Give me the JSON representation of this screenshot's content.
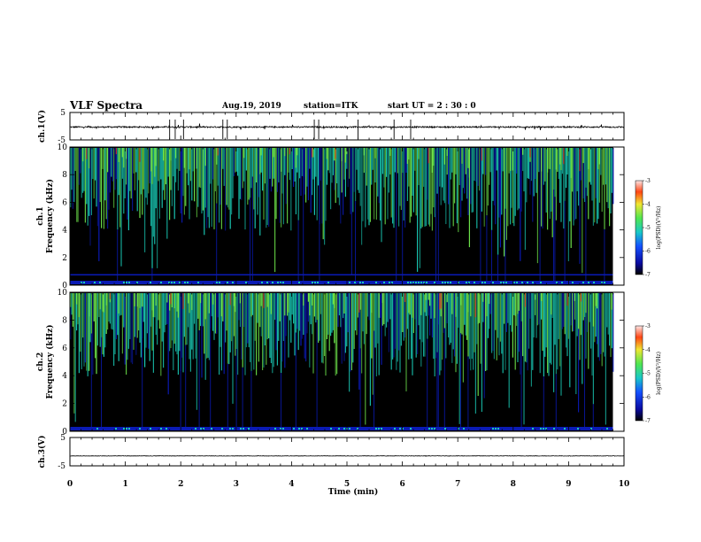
{
  "header": {
    "title": "VLF Spectra",
    "date": "Aug.19, 2019",
    "station": "station=ITK",
    "start_ut": "start  UT =  2 : 30 : 0"
  },
  "colors": {
    "background": "#000000",
    "low": "#0a1ab4",
    "mid": "#19c8b4",
    "high": "#6ee64b",
    "peak": "#ff2814",
    "trace": "#000000"
  },
  "chart_data": [
    {
      "type": "line",
      "ylabel": "ch.1(V)",
      "ylim": [
        -5,
        5
      ],
      "yticks": [
        "5",
        "-5"
      ],
      "xlim": [
        0,
        10
      ],
      "series": [
        {
          "baseline": -0.3,
          "noise": 0.25
        }
      ]
    },
    {
      "type": "heatmap",
      "ylabel": "ch.1\nFrequency  (kHz)",
      "ylabel_lines": [
        "ch.1",
        "Frequency  (kHz)"
      ],
      "xlim": [
        0,
        9.8
      ],
      "ylim": [
        0,
        10
      ],
      "yticks": [
        "0",
        "2",
        "4",
        "6",
        "8",
        "10"
      ],
      "colorbar": {
        "label": "log(PSD)(V²/Hz)",
        "range": [
          -7,
          -3
        ],
        "ticks": [
          "-3",
          "-4",
          "-5",
          "-6",
          "-7"
        ]
      }
    },
    {
      "type": "heatmap",
      "ylabel": "ch.2\nFrequency  (kHz)",
      "ylabel_lines": [
        "ch.2",
        "Frequency  (kHz)"
      ],
      "xlim": [
        0,
        9.8
      ],
      "ylim": [
        0,
        10
      ],
      "yticks": [
        "0",
        "2",
        "4",
        "6",
        "8",
        "10"
      ],
      "colorbar": {
        "label": "log(PSD)(V²/Hz)",
        "range": [
          -7,
          -3
        ],
        "ticks": [
          "-3",
          "-4",
          "-5",
          "-6",
          "-7"
        ]
      }
    },
    {
      "type": "line",
      "ylabel": "ch.3(V)",
      "ylim": [
        -5,
        5
      ],
      "yticks": [
        "5",
        "-5"
      ],
      "xlim": [
        0,
        10
      ],
      "xlabel": "Time  (min)",
      "xticks": [
        "0",
        "1",
        "2",
        "3",
        "4",
        "5",
        "6",
        "7",
        "8",
        "9",
        "10"
      ],
      "series": [
        {
          "baseline": -1.5,
          "noise": 0.08
        }
      ]
    }
  ]
}
